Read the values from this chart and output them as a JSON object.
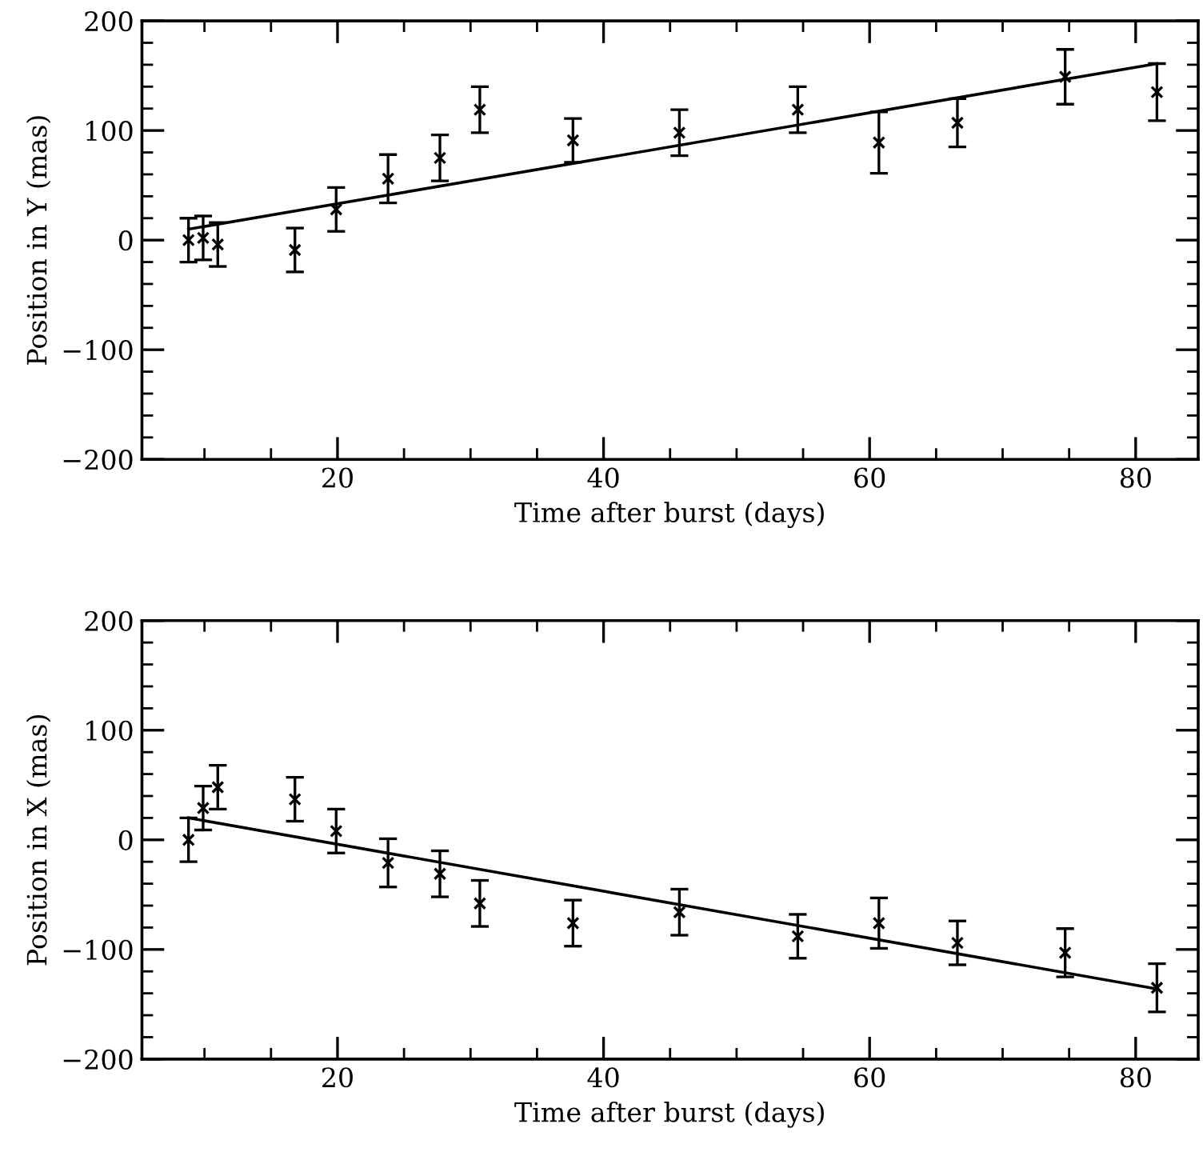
{
  "chart_data": [
    {
      "type": "scatter",
      "xlabel": "Time after burst (days)",
      "ylabel": "Position in Y (mas)",
      "marker": "cross",
      "grid": false,
      "legend": false,
      "xlim": [
        5.3,
        84.7
      ],
      "ylim": [
        -200,
        200
      ],
      "xticks": [
        {
          "value": 10,
          "label": null
        },
        {
          "value": 15,
          "label": null
        },
        20,
        {
          "value": 25,
          "label": null
        },
        {
          "value": 30,
          "label": null
        },
        {
          "value": 35,
          "label": null
        },
        40,
        {
          "value": 45,
          "label": null
        },
        {
          "value": 50,
          "label": null
        },
        {
          "value": 55,
          "label": null
        },
        60,
        {
          "value": 65,
          "label": null
        },
        {
          "value": 70,
          "label": null
        },
        {
          "value": 75,
          "label": null
        },
        80
      ],
      "yticks": [
        {
          "value": -200,
          "label": "−200"
        },
        {
          "value": -180,
          "label": null
        },
        {
          "value": -160,
          "label": null
        },
        {
          "value": -140,
          "label": null
        },
        {
          "value": -120,
          "label": null
        },
        {
          "value": -100,
          "label": "−100"
        },
        {
          "value": -80,
          "label": null
        },
        {
          "value": -60,
          "label": null
        },
        {
          "value": -40,
          "label": null
        },
        {
          "value": -20,
          "label": null
        },
        0,
        {
          "value": 20,
          "label": null
        },
        {
          "value": 40,
          "label": null
        },
        {
          "value": 60,
          "label": null
        },
        {
          "value": 80,
          "label": null
        },
        100,
        {
          "value": 120,
          "label": null
        },
        {
          "value": 140,
          "label": null
        },
        {
          "value": 160,
          "label": null
        },
        {
          "value": 180,
          "label": null
        },
        200
      ],
      "series": [
        {
          "color": "#000000",
          "x": [
            8.8,
            9.9,
            11.0,
            16.8,
            19.9,
            23.8,
            27.7,
            30.7,
            37.7,
            45.7,
            54.6,
            60.7,
            66.6,
            74.7,
            81.6
          ],
          "values": [
            0,
            2,
            -4,
            -9,
            28,
            56,
            75,
            119,
            91,
            98,
            119,
            89,
            107,
            149,
            135
          ],
          "errors": [
            20,
            20,
            20,
            20,
            20,
            22,
            21,
            21,
            20,
            21,
            21,
            28,
            22,
            25,
            26
          ]
        },
        {
          "type": "line",
          "marker": "none",
          "color": "#000000",
          "x": [
            8.8,
            81.6
          ],
          "values": [
            10,
            161
          ]
        }
      ]
    },
    {
      "type": "scatter",
      "xlabel": "Time after burst (days)",
      "ylabel": "Position in X (mas)",
      "marker": "cross",
      "grid": false,
      "legend": false,
      "xlim": [
        5.3,
        84.7
      ],
      "ylim": [
        -200,
        200
      ],
      "xticks": [
        {
          "value": 10,
          "label": null
        },
        {
          "value": 15,
          "label": null
        },
        20,
        {
          "value": 25,
          "label": null
        },
        {
          "value": 30,
          "label": null
        },
        {
          "value": 35,
          "label": null
        },
        40,
        {
          "value": 45,
          "label": null
        },
        {
          "value": 50,
          "label": null
        },
        {
          "value": 55,
          "label": null
        },
        60,
        {
          "value": 65,
          "label": null
        },
        {
          "value": 70,
          "label": null
        },
        {
          "value": 75,
          "label": null
        },
        80
      ],
      "yticks": [
        {
          "value": -200,
          "label": "−200"
        },
        {
          "value": -180,
          "label": null
        },
        {
          "value": -160,
          "label": null
        },
        {
          "value": -140,
          "label": null
        },
        {
          "value": -120,
          "label": null
        },
        {
          "value": -100,
          "label": "−100"
        },
        {
          "value": -80,
          "label": null
        },
        {
          "value": -60,
          "label": null
        },
        {
          "value": -40,
          "label": null
        },
        {
          "value": -20,
          "label": null
        },
        0,
        {
          "value": 20,
          "label": null
        },
        {
          "value": 40,
          "label": null
        },
        {
          "value": 60,
          "label": null
        },
        {
          "value": 80,
          "label": null
        },
        100,
        {
          "value": 120,
          "label": null
        },
        {
          "value": 140,
          "label": null
        },
        {
          "value": 160,
          "label": null
        },
        {
          "value": 180,
          "label": null
        },
        200
      ],
      "series": [
        {
          "color": "#000000",
          "x": [
            8.8,
            9.9,
            11.0,
            16.8,
            19.9,
            23.8,
            27.7,
            30.7,
            37.7,
            45.7,
            54.6,
            60.7,
            66.6,
            74.7,
            81.6
          ],
          "values": [
            0,
            29,
            48,
            37,
            8,
            -21,
            -31,
            -58,
            -76,
            -66,
            -88,
            -76,
            -94,
            -103,
            -135
          ],
          "errors": [
            20,
            20,
            20,
            20,
            20,
            22,
            21,
            21,
            21,
            21,
            20,
            23,
            20,
            22,
            22
          ]
        },
        {
          "type": "line",
          "marker": "none",
          "color": "#000000",
          "x": [
            8.8,
            81.6
          ],
          "values": [
            20,
            -136
          ]
        }
      ]
    }
  ]
}
